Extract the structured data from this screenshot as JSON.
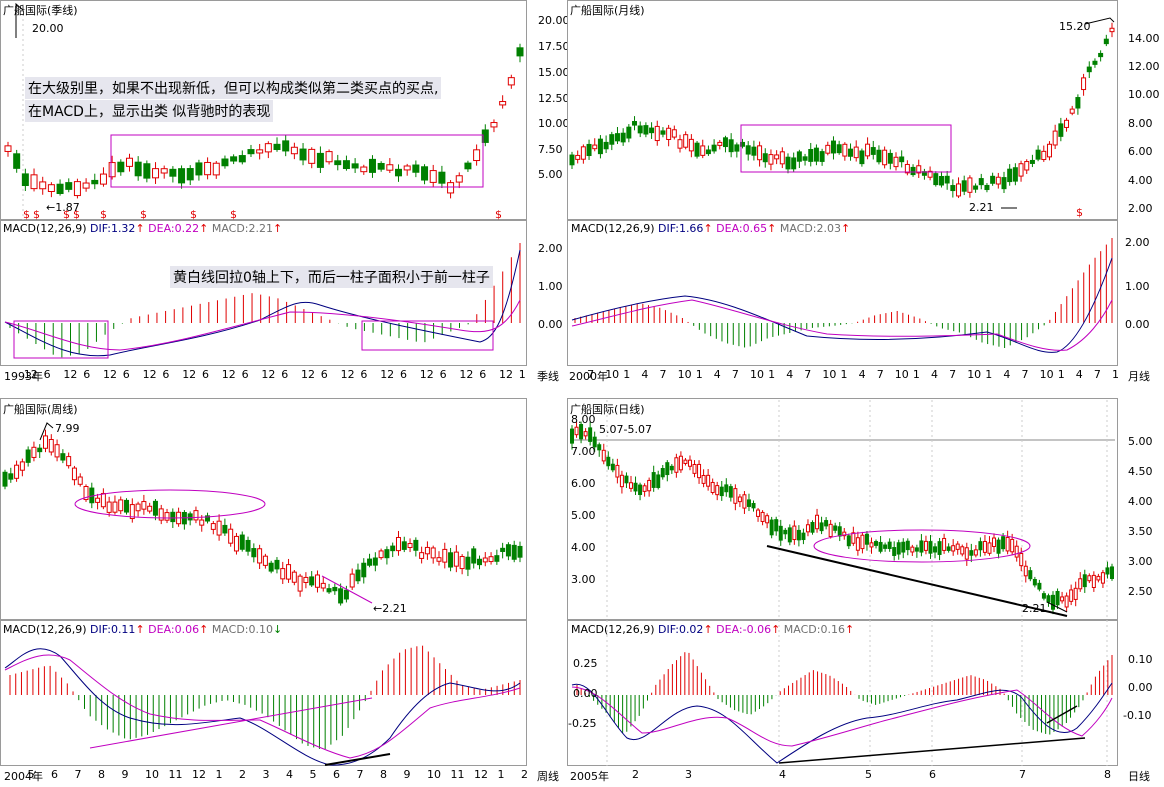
{
  "panels": {
    "q": {
      "title": "广船国际(季线)",
      "peak_label": "20.00",
      "low_label": "←1.87",
      "yticks": [
        "20.00",
        "17.50",
        "15.00",
        "12.50",
        "10.00",
        "7.50",
        "5.00"
      ],
      "note1": "在大级别里，如果不出现新低，但可以构成类似第二类买点的买点,",
      "note2": "在MACD上，显示出类 似背驰时的表现",
      "macd_note": "黄白线回拉0轴上下，而后一柱子面积小于前一柱子",
      "macd": {
        "label": "MACD(12,26,9)",
        "dif": "DIF:1.32",
        "dea": "DEA:0.22",
        "m": "MACD:2.21"
      },
      "macd_yticks": [
        "2.00",
        "1.00",
        "0.00"
      ],
      "xaxis": [
        "1993年",
        "12",
        "6",
        "12",
        "6",
        "12",
        "6",
        "12",
        "6",
        "12",
        "6",
        "12",
        "6",
        "12",
        "6",
        "12",
        "6",
        "12",
        "6",
        "12",
        "6",
        "12",
        "6",
        "12",
        "6",
        "12",
        "1"
      ],
      "period": "季线"
    },
    "m": {
      "title": "广船国际(月线)",
      "peak_label": "15.20",
      "low_label": "2.21",
      "yticks": [
        "14.00",
        "12.00",
        "10.00",
        "8.00",
        "6.00",
        "4.00",
        "2.00"
      ],
      "macd": {
        "label": "MACD(12,26,9)",
        "dif": "DIF:1.66",
        "dea": "DEA:0.65",
        "m": "MACD:2.03"
      },
      "macd_yticks": [
        "2.00",
        "1.00",
        "0.00"
      ],
      "xaxis": [
        "2000年",
        "7",
        "10",
        "1",
        "4",
        "7",
        "10",
        "1",
        "4",
        "7",
        "10",
        "1",
        "4",
        "7",
        "10",
        "1",
        "4",
        "7",
        "10",
        "1",
        "4",
        "7",
        "10",
        "1",
        "4",
        "7",
        "10",
        "1",
        "4",
        "7",
        "1"
      ],
      "period": "月线"
    },
    "w": {
      "title": "广船国际(周线)",
      "peak_label": "7.99",
      "low_label": "←2.21",
      "macd": {
        "label": "MACD(12,26,9)",
        "dif": "DIF:0.11",
        "dea": "DEA:0.06",
        "m": "MACD:0.10"
      },
      "xaxis": [
        "2004年",
        "5",
        "6",
        "7",
        "8",
        "9",
        "10",
        "11",
        "12",
        "1",
        "2",
        "3",
        "4",
        "5",
        "6",
        "7",
        "8",
        "9",
        "10",
        "11",
        "12",
        "1",
        "2"
      ],
      "period": "周线"
    },
    "d": {
      "title": "广船国际(日线)",
      "peak_label": "5.07-5.07",
      "low_label": "2.21",
      "yticks_left": [
        "8.00",
        "7.00",
        "6.00",
        "5.00",
        "4.00",
        "3.00"
      ],
      "yticks_right": [
        "5.00",
        "4.50",
        "4.00",
        "3.50",
        "3.00",
        "2.50"
      ],
      "macd": {
        "label": "MACD(12,26,9)",
        "dif": "DIF:0.02",
        "dea": "DEA:-0.06",
        "m": "MACD:0.16"
      },
      "macd_yticks_left": [
        "0.25",
        "0.00",
        "-0.25"
      ],
      "macd_yticks_right": [
        "0.10",
        "0.00",
        "-0.10"
      ],
      "xaxis": [
        "2005年",
        "2",
        "3",
        "4",
        "5",
        "6",
        "7",
        "8"
      ],
      "period": "日线"
    }
  },
  "colors": {
    "up": "#e00000",
    "down": "#008000",
    "dif": "#000080",
    "dea": "#c000c0",
    "box": "#c000c0",
    "grid": "#9a9a9a"
  }
}
